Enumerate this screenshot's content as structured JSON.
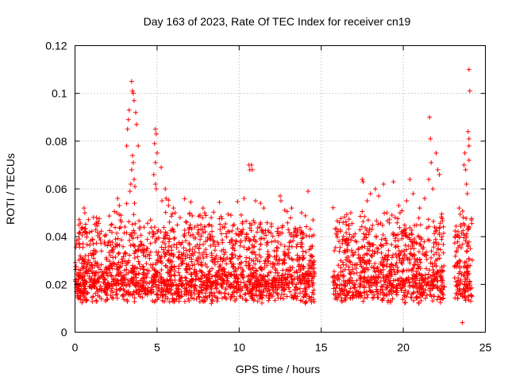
{
  "chart_data": {
    "type": "scatter",
    "title": "Day 163 of 2023, Rate Of TEC Index for receiver cn19",
    "xlabel": "GPS time / hours",
    "ylabel": "ROTI / TECUs",
    "xlim": [
      0,
      25
    ],
    "ylim": [
      0,
      0.12
    ],
    "xticks": [
      0,
      5,
      10,
      15,
      20,
      25
    ],
    "xtick_labels": [
      "0",
      "5",
      "10",
      "15",
      "20",
      "25"
    ],
    "yticks": [
      0,
      0.02,
      0.04,
      0.06,
      0.08,
      0.1,
      0.12
    ],
    "ytick_labels": [
      "0",
      "0.02",
      "0.04",
      "0.06",
      "0.08",
      "0.1",
      "0.12"
    ],
    "grid": true,
    "marker": "+",
    "color": "#ff0000",
    "series": [
      {
        "name": "ROTI",
        "points": [
          [
            3.45,
            0.105
          ],
          [
            3.5,
            0.101
          ],
          [
            3.55,
            0.1
          ],
          [
            3.6,
            0.097
          ],
          [
            3.3,
            0.093
          ],
          [
            3.25,
            0.089
          ],
          [
            3.7,
            0.092
          ],
          [
            3.75,
            0.087
          ],
          [
            3.2,
            0.085
          ],
          [
            3.85,
            0.078
          ],
          [
            3.15,
            0.078
          ],
          [
            3.5,
            0.074
          ],
          [
            3.55,
            0.071
          ],
          [
            3.45,
            0.068
          ],
          [
            3.6,
            0.064
          ],
          [
            3.65,
            0.061
          ],
          [
            3.4,
            0.062
          ],
          [
            3.35,
            0.059
          ],
          [
            4.9,
            0.085
          ],
          [
            4.95,
            0.083
          ],
          [
            4.85,
            0.079
          ],
          [
            5.0,
            0.075
          ],
          [
            4.9,
            0.071
          ],
          [
            5.25,
            0.069
          ],
          [
            4.8,
            0.066
          ],
          [
            4.9,
            0.062
          ],
          [
            4.95,
            0.06
          ],
          [
            5.5,
            0.06
          ],
          [
            5.55,
            0.056
          ],
          [
            5.3,
            0.055
          ],
          [
            2.6,
            0.056
          ],
          [
            2.7,
            0.053
          ],
          [
            2.55,
            0.05
          ],
          [
            2.8,
            0.049
          ],
          [
            0.55,
            0.052
          ],
          [
            0.6,
            0.05
          ],
          [
            1.3,
            0.048
          ],
          [
            6.0,
            0.052
          ],
          [
            6.1,
            0.05
          ],
          [
            6.4,
            0.048
          ],
          [
            7.8,
            0.052
          ],
          [
            7.9,
            0.05
          ],
          [
            8.3,
            0.048
          ],
          [
            9.5,
            0.049
          ],
          [
            10.3,
            0.056
          ],
          [
            10.6,
            0.07
          ],
          [
            10.65,
            0.068
          ],
          [
            10.75,
            0.07
          ],
          [
            10.8,
            0.068
          ],
          [
            11.0,
            0.055
          ],
          [
            11.3,
            0.054
          ],
          [
            11.5,
            0.052
          ],
          [
            12.5,
            0.057
          ],
          [
            12.55,
            0.055
          ],
          [
            13.2,
            0.052
          ],
          [
            13.8,
            0.05
          ],
          [
            14.2,
            0.059
          ],
          [
            14.5,
            0.047
          ],
          [
            16.1,
            0.046
          ],
          [
            16.8,
            0.05
          ],
          [
            17.5,
            0.064
          ],
          [
            17.55,
            0.063
          ],
          [
            17.8,
            0.055
          ],
          [
            18.0,
            0.058
          ],
          [
            18.3,
            0.06
          ],
          [
            18.5,
            0.057
          ],
          [
            18.8,
            0.062
          ],
          [
            19.0,
            0.05
          ],
          [
            19.4,
            0.063
          ],
          [
            19.8,
            0.05
          ],
          [
            20.2,
            0.055
          ],
          [
            20.4,
            0.064
          ],
          [
            20.6,
            0.058
          ],
          [
            21.0,
            0.052
          ],
          [
            21.3,
            0.056
          ],
          [
            21.6,
            0.09
          ],
          [
            21.65,
            0.081
          ],
          [
            21.7,
            0.071
          ],
          [
            21.55,
            0.064
          ],
          [
            21.8,
            0.06
          ],
          [
            22.0,
            0.075
          ],
          [
            22.1,
            0.068
          ],
          [
            22.2,
            0.066
          ],
          [
            23.4,
            0.052
          ],
          [
            23.7,
            0.07
          ],
          [
            23.75,
            0.075
          ],
          [
            23.8,
            0.068
          ],
          [
            23.85,
            0.062
          ],
          [
            23.9,
            0.058
          ],
          [
            23.95,
            0.084
          ],
          [
            24.0,
            0.081
          ],
          [
            24.0,
            0.078
          ],
          [
            24.0,
            0.072
          ],
          [
            24.0,
            0.11
          ],
          [
            24.05,
            0.101
          ],
          [
            23.5,
            0.045
          ],
          [
            23.6,
            0.004
          ]
        ]
      }
    ],
    "gaps_hours": [
      [
        14.6,
        15.7
      ],
      [
        22.5,
        23.1
      ]
    ]
  }
}
